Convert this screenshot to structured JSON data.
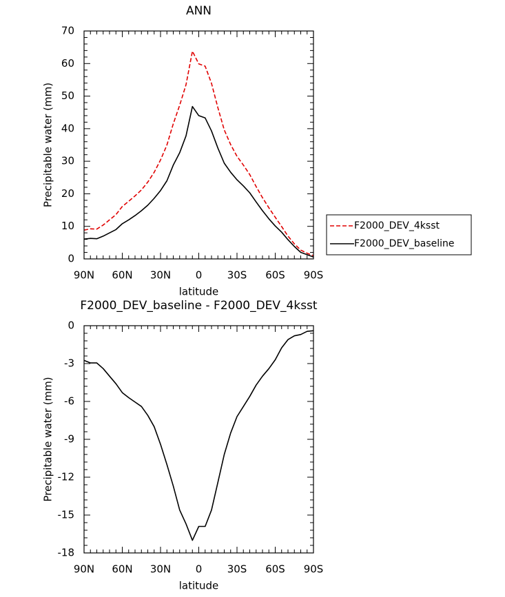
{
  "chart_data": [
    {
      "type": "line",
      "title": "ANN",
      "x_label": "latitude",
      "y_label": "Precipitable water (mm)",
      "x": [
        90,
        85,
        80,
        75,
        70,
        65,
        60,
        55,
        50,
        45,
        40,
        35,
        30,
        25,
        20,
        15,
        10,
        5,
        0,
        -5,
        -10,
        -15,
        -20,
        -25,
        -30,
        -35,
        -40,
        -45,
        -50,
        -55,
        -60,
        -65,
        -70,
        -75,
        -80,
        -85,
        -90
      ],
      "xlim": [
        90,
        -90
      ],
      "xticks": [
        {
          "value": 90,
          "label": "90N"
        },
        {
          "value": 60,
          "label": "60N"
        },
        {
          "value": 30,
          "label": "30N"
        },
        0,
        {
          "value": -30,
          "label": "30S"
        },
        {
          "value": -60,
          "label": "60S"
        },
        {
          "value": -90,
          "label": "90S"
        }
      ],
      "ylim": [
        0,
        70
      ],
      "yticks": [
        0,
        10,
        20,
        30,
        40,
        50,
        60,
        70
      ],
      "legend": "right",
      "series": [
        {
          "name": "F2000_DEV_4ksst",
          "color": "#e00000",
          "dashed": true,
          "values": [
            8.85,
            9.25,
            9.15,
            10.4,
            12.0,
            13.6,
            16.1,
            17.7,
            19.35,
            21.2,
            23.6,
            26.6,
            30.4,
            35.0,
            41.5,
            47.2,
            53.5,
            63.8,
            59.9,
            59.2,
            53.9,
            46.4,
            39.6,
            35.1,
            31.5,
            28.8,
            25.9,
            22.2,
            18.8,
            15.7,
            12.8,
            9.95,
            7.0,
            4.6,
            2.7,
            1.75,
            1.0
          ]
        },
        {
          "name": "F2000_DEV_baseline",
          "color": "#000000",
          "dashed": false,
          "values": [
            6.1,
            6.3,
            6.2,
            7.0,
            8.0,
            9.0,
            10.8,
            12.0,
            13.3,
            14.8,
            16.5,
            18.6,
            21.0,
            24.0,
            28.8,
            32.6,
            37.8,
            46.8,
            44.0,
            43.3,
            39.3,
            34.0,
            29.4,
            26.6,
            24.3,
            22.4,
            20.3,
            17.5,
            14.8,
            12.3,
            10.1,
            8.2,
            5.9,
            3.8,
            2.0,
            1.3,
            0.6
          ]
        }
      ]
    },
    {
      "type": "line",
      "title": "F2000_DEV_baseline - F2000_DEV_4ksst",
      "x_label": "latitude",
      "y_label": "Precipitable water (mm)",
      "x": [
        90,
        85,
        80,
        75,
        70,
        65,
        60,
        55,
        50,
        45,
        40,
        35,
        30,
        25,
        20,
        15,
        10,
        5,
        0,
        -5,
        -10,
        -15,
        -20,
        -25,
        -30,
        -35,
        -40,
        -45,
        -50,
        -55,
        -60,
        -65,
        -70,
        -75,
        -80,
        -85,
        -90
      ],
      "xlim": [
        90,
        -90
      ],
      "xticks": [
        {
          "value": 90,
          "label": "90N"
        },
        {
          "value": 60,
          "label": "60N"
        },
        {
          "value": 30,
          "label": "30N"
        },
        0,
        {
          "value": -30,
          "label": "30S"
        },
        {
          "value": -60,
          "label": "60S"
        },
        {
          "value": -90,
          "label": "90S"
        }
      ],
      "ylim": [
        -18,
        0
      ],
      "yticks": [
        -18,
        -15,
        -12,
        -9,
        -6,
        -3,
        0
      ],
      "series": [
        {
          "color": "#000000",
          "dashed": false,
          "values": [
            -2.75,
            -2.95,
            -2.95,
            -3.4,
            -4.0,
            -4.6,
            -5.3,
            -5.7,
            -6.05,
            -6.4,
            -7.1,
            -8.0,
            -9.4,
            -11.0,
            -12.7,
            -14.6,
            -15.7,
            -17.0,
            -15.9,
            -15.9,
            -14.6,
            -12.4,
            -10.2,
            -8.5,
            -7.2,
            -6.4,
            -5.6,
            -4.7,
            -4.0,
            -3.4,
            -2.7,
            -1.75,
            -1.1,
            -0.8,
            -0.7,
            -0.45,
            -0.4
          ]
        }
      ]
    }
  ]
}
